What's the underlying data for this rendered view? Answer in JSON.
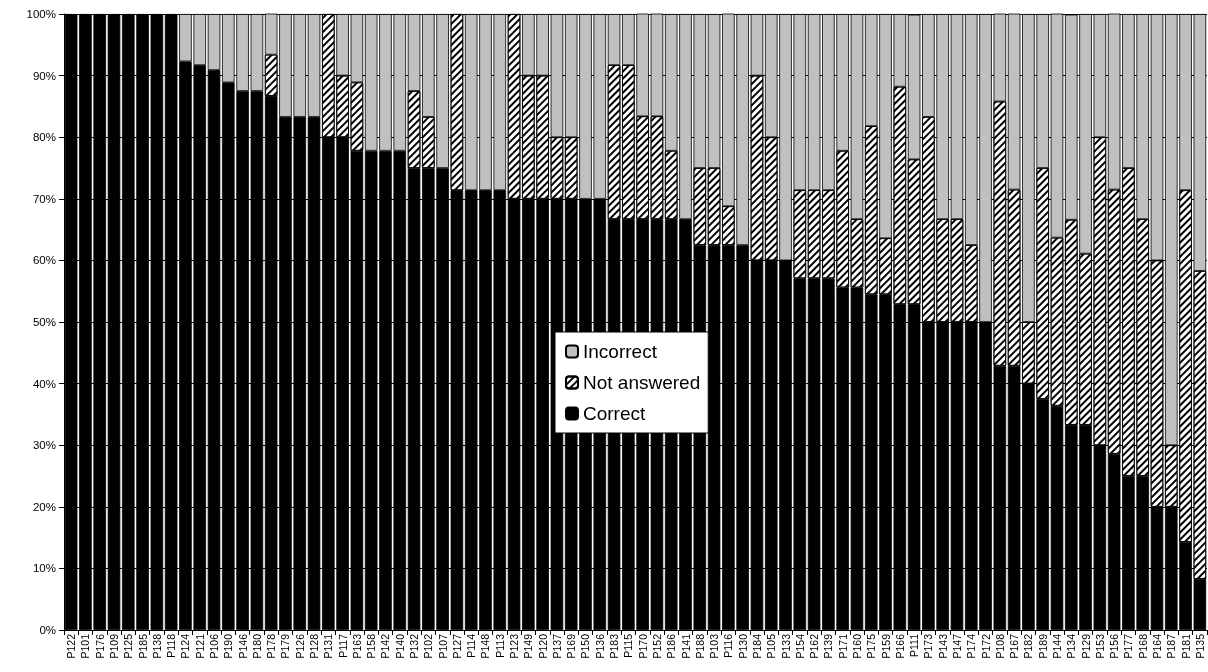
{
  "chart_data": {
    "type": "bar",
    "stacked": true,
    "categories": [
      "P122",
      "P101",
      "P176",
      "P109",
      "P125",
      "P185",
      "P138",
      "P118",
      "P124",
      "P121",
      "P106",
      "P190",
      "P146",
      "P180",
      "P178",
      "P179",
      "P126",
      "P128",
      "P131",
      "P117",
      "P163",
      "P158",
      "P142",
      "P140",
      "P132",
      "P102",
      "P107",
      "P127",
      "P114",
      "P148",
      "P113",
      "P123",
      "P149",
      "P120",
      "P137",
      "P169",
      "P150",
      "P136",
      "P183",
      "P115",
      "P170",
      "P152",
      "P186",
      "P141",
      "P188",
      "P103",
      "P116",
      "P130",
      "P184",
      "P105",
      "P133",
      "P154",
      "P162",
      "P139",
      "P171",
      "P160",
      "P175",
      "P159",
      "P166",
      "P111",
      "P173",
      "P143",
      "P147",
      "P174",
      "P172",
      "P108",
      "P167",
      "P182",
      "P189",
      "P144",
      "P134",
      "P129",
      "P153",
      "P156",
      "P177",
      "P168",
      "P164",
      "P187",
      "P181",
      "P135"
    ],
    "series": [
      {
        "name": "Correct",
        "color": "#000000",
        "values": [
          100,
          100,
          100,
          100,
          100,
          100,
          100,
          100,
          92.3,
          91.7,
          90.9,
          88.9,
          87.5,
          87.5,
          86.7,
          83.3,
          83.3,
          83.3,
          80,
          80,
          77.8,
          77.8,
          77.8,
          77.8,
          75,
          75,
          75,
          71.4,
          71.4,
          71.4,
          71.4,
          70,
          70,
          70,
          70,
          70,
          70,
          70,
          66.7,
          66.7,
          66.7,
          66.7,
          66.7,
          66.7,
          62.5,
          62.5,
          62.5,
          62.5,
          60,
          60,
          60,
          57.1,
          57.1,
          57.1,
          55.6,
          55.6,
          54.5,
          54.5,
          52.9,
          52.9,
          50,
          50,
          50,
          50,
          50,
          42.9,
          42.9,
          40,
          37.5,
          36.4,
          33.3,
          33.3,
          30,
          28.6,
          25,
          25,
          20,
          20,
          14.3,
          8.3
        ]
      },
      {
        "name": "Not answered",
        "color": "#ffffff",
        "values": [
          0,
          0,
          0,
          0,
          0,
          0,
          0,
          0,
          0,
          0,
          0,
          0,
          0,
          0,
          6.7,
          0,
          0,
          0,
          20,
          10,
          11.1,
          0,
          0,
          0,
          12.5,
          8.3,
          0,
          28.6,
          0,
          0,
          0,
          30,
          20,
          20,
          10,
          10,
          0,
          0,
          25,
          25,
          16.7,
          16.7,
          11.1,
          0,
          12.5,
          12.5,
          6.3,
          0,
          30,
          20,
          0,
          14.3,
          14.3,
          14.3,
          22.2,
          11.1,
          27.3,
          9.1,
          35.3,
          23.5,
          33.3,
          16.7,
          16.7,
          12.5,
          0,
          42.9,
          28.6,
          10,
          37.5,
          27.3,
          33.3,
          27.8,
          50,
          42.9,
          50,
          41.7,
          40,
          10,
          57.1,
          50
        ]
      },
      {
        "name": "Incorrect",
        "color": "#c0c0c0",
        "values": [
          0,
          0,
          0,
          0,
          0,
          0,
          0,
          0,
          7.7,
          8.3,
          9.1,
          11.1,
          12.5,
          12.5,
          6.7,
          16.7,
          16.7,
          16.7,
          0,
          10,
          11.1,
          22.2,
          22.2,
          22.2,
          12.5,
          16.7,
          25,
          0,
          28.6,
          28.6,
          28.6,
          0,
          10,
          10,
          20,
          20,
          30,
          30,
          8.3,
          8.3,
          16.7,
          16.7,
          22.2,
          33.3,
          25,
          25,
          31.3,
          37.5,
          10,
          20,
          40,
          28.6,
          28.6,
          28.6,
          22.2,
          33.3,
          18.2,
          36.4,
          11.8,
          23.5,
          16.7,
          33.3,
          33.3,
          37.5,
          50,
          14.3,
          28.6,
          50,
          25,
          36.4,
          33.3,
          38.9,
          20,
          28.6,
          25,
          33.3,
          40,
          70,
          28.6,
          41.7
        ]
      }
    ],
    "ylim": [
      0,
      100
    ],
    "yticks": [
      {
        "value": 0,
        "label": "0%"
      },
      {
        "value": 10,
        "label": "10%"
      },
      {
        "value": 20,
        "label": "20%"
      },
      {
        "value": 30,
        "label": "30%"
      },
      {
        "value": 40,
        "label": "40%"
      },
      {
        "value": 50,
        "label": "50%"
      },
      {
        "value": 60,
        "label": "60%"
      },
      {
        "value": 70,
        "label": "70%"
      },
      {
        "value": 80,
        "label": "80%"
      },
      {
        "value": 90,
        "label": "90%"
      },
      {
        "value": 100,
        "label": "100%"
      }
    ],
    "grid": "y",
    "legend": "center"
  }
}
